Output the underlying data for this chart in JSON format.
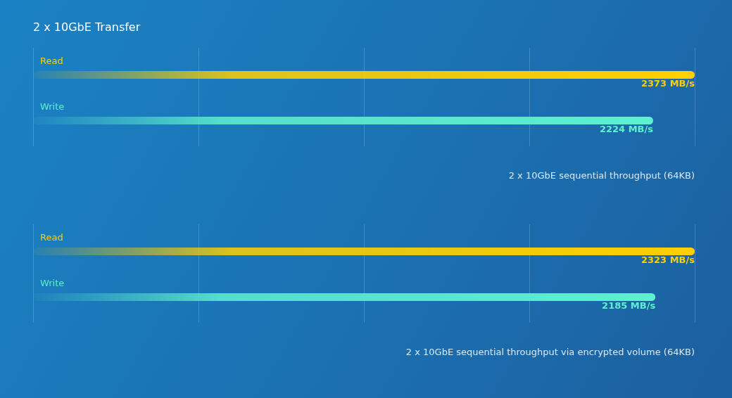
{
  "chart_data": [
    {
      "type": "bar",
      "title": "2 x 10GbE Transfer",
      "orientation": "horizontal",
      "categories": [
        "Read",
        "Write"
      ],
      "values": [
        2373,
        2224
      ],
      "colors": [
        "#ffd000",
        "#5ef0d0"
      ],
      "value_labels": [
        "2373 MB/s",
        "2224 MB/s"
      ],
      "grid": "x",
      "tick_labels": "y",
      "annotations": [
        "2 x 10GbE sequential throughput (64KB)"
      ]
    },
    {
      "type": "bar",
      "orientation": "horizontal",
      "categories": [
        "Read",
        "Write"
      ],
      "values": [
        2323,
        2185
      ],
      "colors": [
        "#ffd000",
        "#5ef0d0"
      ],
      "value_labels": [
        "2323 MB/s",
        "2185 MB/s"
      ],
      "grid": "x",
      "tick_labels": "y",
      "annotations": [
        "2 x 10GbE sequential throughput via encrypted volume (64KB)"
      ]
    }
  ]
}
